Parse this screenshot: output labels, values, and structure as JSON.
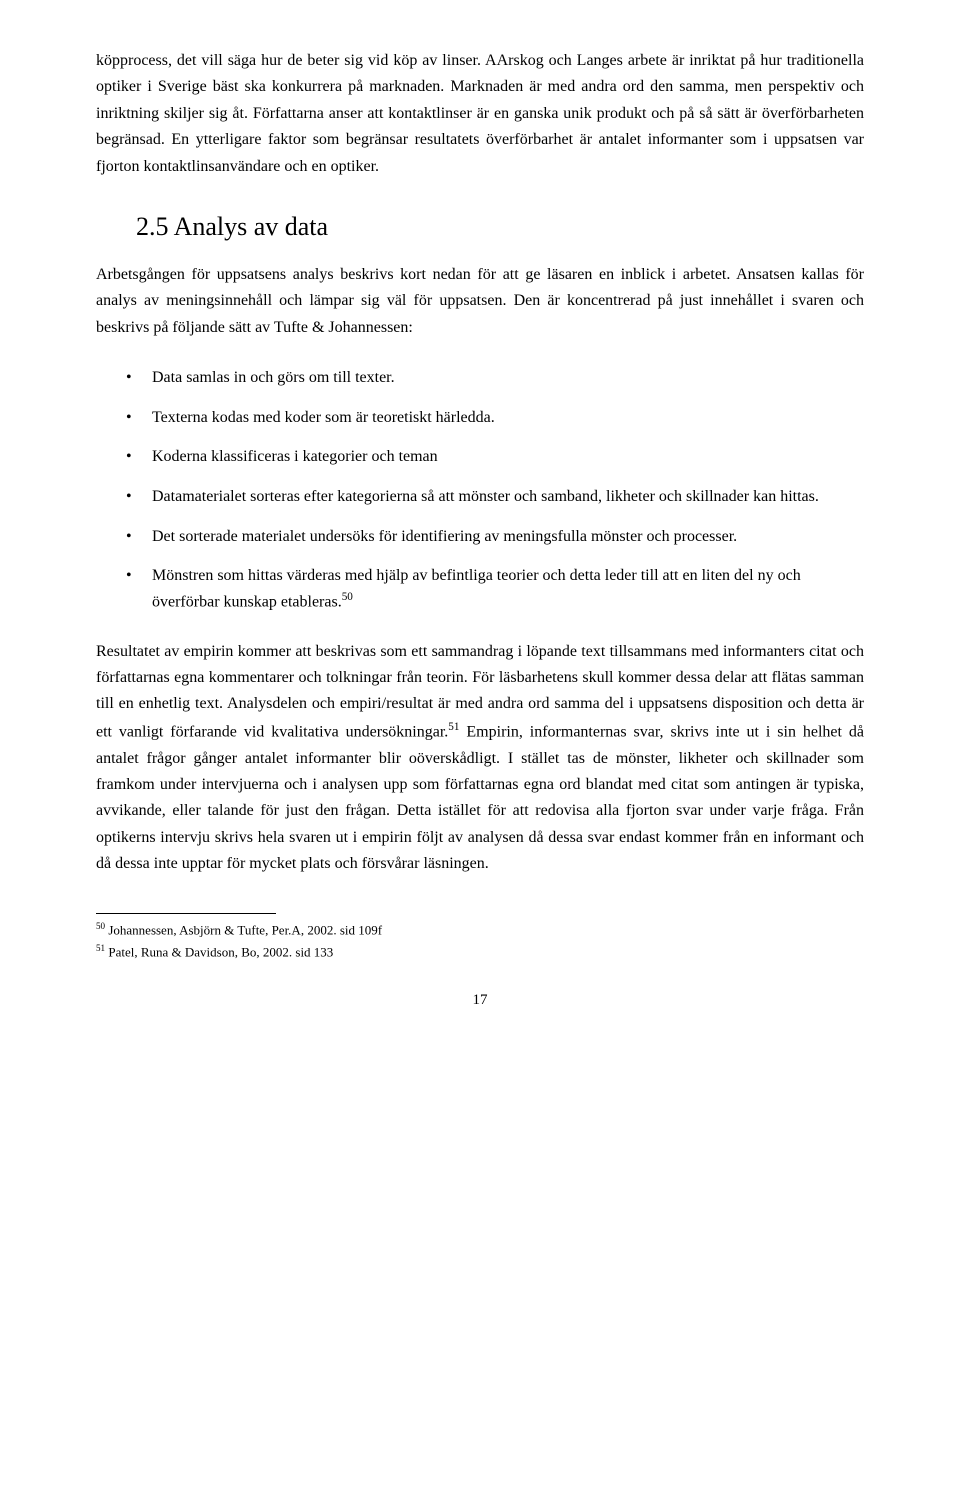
{
  "para1": "köpprocess, det vill säga hur de beter sig vid köp av linser. AArskog och Langes arbete är inriktat på hur traditionella optiker i Sverige bäst ska konkurrera på marknaden. Marknaden är med andra ord den samma, men perspektiv och inriktning skiljer sig åt. Författarna anser att kontaktlinser är en ganska unik produkt och på så sätt är överförbarheten begränsad. En ytterligare faktor som begränsar resultatets överförbarhet är antalet informanter som i uppsatsen var fjorton kontaktlinsanvändare och en optiker.",
  "heading": "2.5 Analys av data",
  "para2_before": "Arbetsgången för uppsatsens analys beskrivs kort nedan för att ge läsaren en inblick i arbetet. Ansatsen kallas för analys av meningsinnehåll och lämpar sig väl för uppsatsen. Den är koncentrerad på just innehållet i svaren och beskrivs på följande sätt av Tufte & Johannessen:",
  "bullets": [
    "Data samlas in och görs om till texter.",
    "Texterna kodas med koder som är teoretiskt härledda.",
    "Koderna klassificeras i kategorier och teman",
    "Datamaterialet sorteras efter kategorierna så att mönster och samband, likheter och skillnader kan hittas.",
    "Det sorterade materialet undersöks för identifiering av meningsfulla mönster och processer.",
    "Mönstren som hittas värderas med hjälp av befintliga teorier och detta leder till att en liten del ny och överförbar kunskap etableras."
  ],
  "bullet_last_sup": "50",
  "para3_a": "Resultatet av empirin kommer att beskrivas som ett sammandrag i löpande text tillsammans med informanters citat och författarnas egna kommentarer och tolkningar från teorin. För läsbarhetens skull kommer dessa delar att flätas samman till en enhetlig text. Analysdelen och empiri/resultat är med andra ord samma del i uppsatsens disposition och detta är ett vanligt förfarande vid kvalitativa undersökningar.",
  "para3_sup": "51",
  "para3_b": " Empirin, informanternas svar, skrivs inte ut i sin helhet då antalet frågor gånger antalet informanter blir oöverskådligt. I stället tas de mönster, likheter och skillnader som framkom under intervjuerna och i analysen upp som författarnas egna ord blandat med citat som antingen är typiska, avvikande, eller talande för just den frågan. Detta istället för att redovisa alla fjorton svar under varje fråga. Från optikerns intervju skrivs hela svaren ut i empirin följt av analysen då dessa svar endast kommer från en informant och då dessa inte upptar för mycket plats och försvårar läsningen.",
  "footnotes": [
    {
      "num": "50",
      "text": " Johannessen, Asbjörn & Tufte, Per.A, 2002. sid 109f"
    },
    {
      "num": "51",
      "text": " Patel, Runa & Davidson, Bo, 2002. sid 133"
    }
  ],
  "page_number": "17"
}
